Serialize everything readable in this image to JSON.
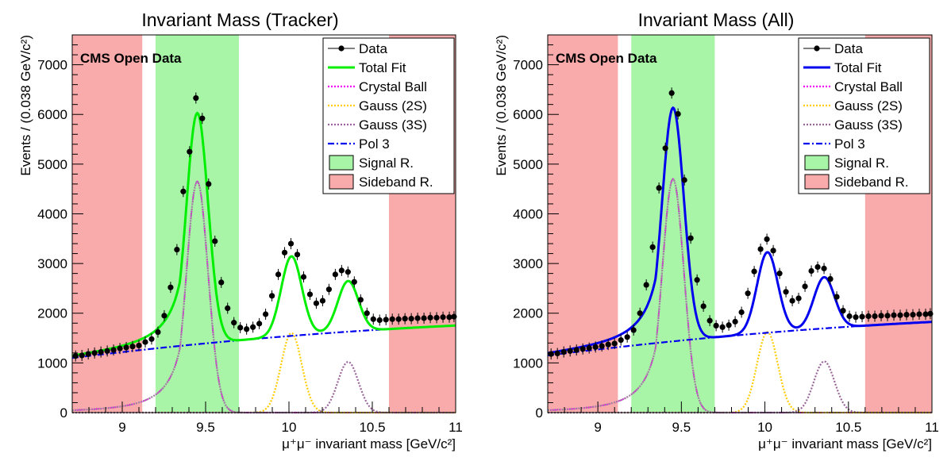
{
  "chart_data": [
    {
      "type": "line",
      "title": "Invariant Mass (Tracker)",
      "xlabel": "μ⁺μ⁻ invariant mass [GeV/c²]",
      "ylabel": "Events / (0.038 GeV/c²)",
      "xlim": [
        8.7,
        11.0
      ],
      "ylim": [
        0,
        7600
      ],
      "xticks": [
        9,
        9.5,
        10,
        10.5,
        11
      ],
      "xtick_labels": [
        "9",
        "9.5",
        "10",
        "10.5",
        "11"
      ],
      "yticks": [
        0,
        1000,
        2000,
        3000,
        4000,
        5000,
        6000,
        7000
      ],
      "ytick_labels": [
        "0",
        "1000",
        "2000",
        "3000",
        "4000",
        "5000",
        "6000",
        "7000"
      ],
      "annotation": "CMS Open Data",
      "total_fit_color": "#00ee00",
      "regions": {
        "sideband": [
          [
            8.7,
            9.12
          ],
          [
            10.6,
            11.0
          ]
        ],
        "signal": [
          9.2,
          9.7
        ]
      },
      "model": {
        "pol_at_8_7": 1100,
        "pol_slope": 410,
        "cb": {
          "amp": 4650,
          "mean": 9.45,
          "sigma": 0.065
        },
        "g2s": {
          "amp": 1600,
          "mean": 10.015,
          "sigma": 0.062
        },
        "g3s": {
          "amp": 1020,
          "mean": 10.355,
          "sigma": 0.062
        }
      },
      "data_points": {
        "x": [
          8.72,
          8.758,
          8.796,
          8.834,
          8.872,
          8.91,
          8.948,
          8.986,
          9.024,
          9.062,
          9.1,
          9.138,
          9.176,
          9.214,
          9.252,
          9.29,
          9.328,
          9.366,
          9.404,
          9.442,
          9.48,
          9.518,
          9.556,
          9.594,
          9.632,
          9.67,
          9.708,
          9.746,
          9.784,
          9.822,
          9.86,
          9.898,
          9.936,
          9.974,
          10.012,
          10.05,
          10.088,
          10.126,
          10.164,
          10.202,
          10.24,
          10.278,
          10.316,
          10.354,
          10.392,
          10.43,
          10.468,
          10.506,
          10.544,
          10.582,
          10.62,
          10.658,
          10.696,
          10.734,
          10.772,
          10.81,
          10.848,
          10.886,
          10.924,
          10.962,
          10.99
        ],
        "y": [
          1140,
          1150,
          1180,
          1200,
          1220,
          1240,
          1260,
          1290,
          1310,
          1330,
          1350,
          1420,
          1480,
          1620,
          1950,
          2520,
          3280,
          4450,
          5250,
          6330,
          5920,
          4600,
          3450,
          2620,
          2100,
          1810,
          1710,
          1680,
          1720,
          1790,
          1980,
          2350,
          2780,
          3220,
          3400,
          3180,
          2730,
          2380,
          2200,
          2250,
          2480,
          2780,
          2860,
          2830,
          2630,
          2270,
          2000,
          1880,
          1860,
          1870,
          1880,
          1880,
          1890,
          1890,
          1900,
          1900,
          1910,
          1910,
          1920,
          1920,
          1930
        ]
      },
      "legend": [
        {
          "label": "Data",
          "color": "#000000",
          "style": "marker"
        },
        {
          "label": "Total Fit",
          "color": "#00ee00",
          "style": "solid"
        },
        {
          "label": "Crystal Ball",
          "color": "#ee00ee",
          "style": "dotted"
        },
        {
          "label": "Gauss (2S)",
          "color": "#ffcc00",
          "style": "dotted"
        },
        {
          "label": "Gauss (3S)",
          "color": "#996699",
          "style": "dotted"
        },
        {
          "label": "Pol 3",
          "color": "#0000ee",
          "style": "dashdot"
        },
        {
          "label": "Signal R.",
          "color": "#a8f5a8",
          "style": "box"
        },
        {
          "label": "Sideband R.",
          "color": "#f9aaaa",
          "style": "box"
        }
      ]
    },
    {
      "type": "line",
      "title": "Invariant Mass (All)",
      "xlabel": "μ⁺μ⁻ invariant mass [GeV/c²]",
      "ylabel": "Events / (0.038 GeV/c²)",
      "xlim": [
        8.7,
        11.0
      ],
      "ylim": [
        0,
        7600
      ],
      "xticks": [
        9,
        9.5,
        10,
        10.5,
        11
      ],
      "xtick_labels": [
        "9",
        "9.5",
        "10",
        "10.5",
        "11"
      ],
      "yticks": [
        0,
        1000,
        2000,
        3000,
        4000,
        5000,
        6000,
        7000
      ],
      "ytick_labels": [
        "0",
        "1000",
        "2000",
        "3000",
        "4000",
        "5000",
        "6000",
        "7000"
      ],
      "annotation": "CMS Open Data",
      "total_fit_color": "#0000ee",
      "regions": {
        "sideband": [
          [
            8.7,
            9.12
          ],
          [
            10.6,
            11.0
          ]
        ],
        "signal": [
          9.2,
          9.7
        ]
      },
      "model": {
        "pol_at_8_7": 1150,
        "pol_slope": 420,
        "cb": {
          "amp": 4700,
          "mean": 9.45,
          "sigma": 0.065
        },
        "g2s": {
          "amp": 1620,
          "mean": 10.015,
          "sigma": 0.062
        },
        "g3s": {
          "amp": 1030,
          "mean": 10.355,
          "sigma": 0.062
        }
      },
      "data_points": {
        "x": [
          8.72,
          8.758,
          8.796,
          8.834,
          8.872,
          8.91,
          8.948,
          8.986,
          9.024,
          9.062,
          9.1,
          9.138,
          9.176,
          9.214,
          9.252,
          9.29,
          9.328,
          9.366,
          9.404,
          9.442,
          9.48,
          9.518,
          9.556,
          9.594,
          9.632,
          9.67,
          9.708,
          9.746,
          9.784,
          9.822,
          9.86,
          9.898,
          9.936,
          9.974,
          10.012,
          10.05,
          10.088,
          10.126,
          10.164,
          10.202,
          10.24,
          10.278,
          10.316,
          10.354,
          10.392,
          10.43,
          10.468,
          10.506,
          10.544,
          10.582,
          10.62,
          10.658,
          10.696,
          10.734,
          10.772,
          10.81,
          10.848,
          10.886,
          10.924,
          10.962,
          10.99
        ],
        "y": [
          1180,
          1190,
          1220,
          1240,
          1260,
          1280,
          1300,
          1320,
          1340,
          1370,
          1390,
          1460,
          1520,
          1660,
          2000,
          2570,
          3330,
          4520,
          5320,
          6430,
          6010,
          4680,
          3510,
          2670,
          2140,
          1850,
          1750,
          1720,
          1760,
          1830,
          2020,
          2400,
          2840,
          3290,
          3490,
          3260,
          2800,
          2430,
          2250,
          2300,
          2540,
          2850,
          2930,
          2900,
          2690,
          2330,
          2050,
          1940,
          1920,
          1930,
          1940,
          1940,
          1950,
          1950,
          1960,
          1960,
          1970,
          1970,
          1980,
          1980,
          1990
        ]
      },
      "legend": [
        {
          "label": "Data",
          "color": "#000000",
          "style": "marker"
        },
        {
          "label": "Total Fit",
          "color": "#0000ee",
          "style": "solid"
        },
        {
          "label": "Crystal Ball",
          "color": "#ee00ee",
          "style": "dotted"
        },
        {
          "label": "Gauss (2S)",
          "color": "#ffcc00",
          "style": "dotted"
        },
        {
          "label": "Gauss (3S)",
          "color": "#996699",
          "style": "dotted"
        },
        {
          "label": "Pol 3",
          "color": "#0000ee",
          "style": "dashdot"
        },
        {
          "label": "Signal R.",
          "color": "#a8f5a8",
          "style": "box"
        },
        {
          "label": "Sideband R.",
          "color": "#f9aaaa",
          "style": "box"
        }
      ]
    }
  ]
}
